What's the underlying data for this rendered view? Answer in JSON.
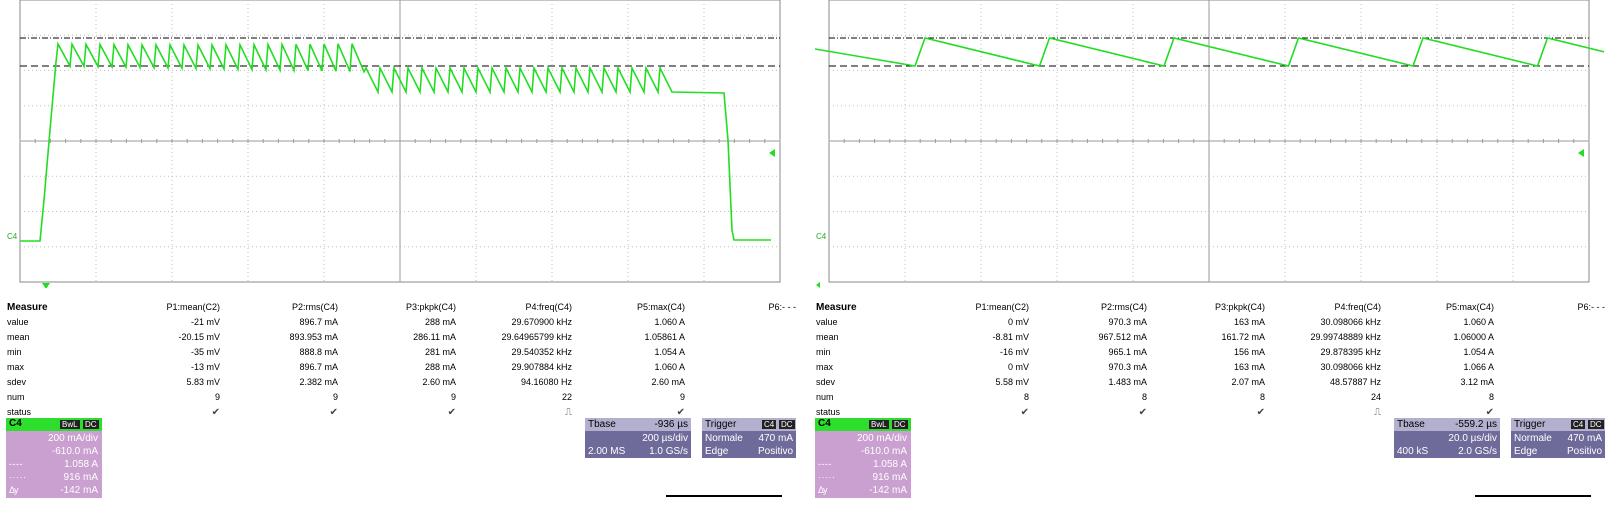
{
  "scopes": [
    {
      "id": "left",
      "channel_label": "C4",
      "measure": {
        "title": "Measure",
        "headers": [
          "P1:mean(C2)",
          "P2:rms(C4)",
          "P3:pkpk(C4)",
          "P4:freq(C4)",
          "P5:max(C4)",
          "P6:- - -"
        ],
        "rows": [
          {
            "label": "value",
            "cells": [
              "-21 mV",
              "896.7 mA",
              "288 mA",
              "29.670900 kHz",
              "1.060 A",
              ""
            ]
          },
          {
            "label": "mean",
            "cells": [
              "-20.15 mV",
              "893.953 mA",
              "286.11 mA",
              "29.64965799 kHz",
              "1.05861 A",
              ""
            ]
          },
          {
            "label": "min",
            "cells": [
              "-35 mV",
              "888.8 mA",
              "281 mA",
              "29.540352 kHz",
              "1.054 A",
              ""
            ]
          },
          {
            "label": "max",
            "cells": [
              "-13 mV",
              "896.7 mA",
              "288 mA",
              "29.907884 kHz",
              "1.060 A",
              ""
            ]
          },
          {
            "label": "sdev",
            "cells": [
              "5.83 mV",
              "2.382 mA",
              "2.60 mA",
              "94.16080 Hz",
              "2.60 mA",
              ""
            ]
          },
          {
            "label": "num",
            "cells": [
              "9",
              "9",
              "9",
              "22",
              "9",
              ""
            ]
          },
          {
            "label": "status",
            "cells": [
              "✔",
              "✔",
              "✔",
              "⎍",
              "✔",
              ""
            ]
          }
        ]
      },
      "channel_box": {
        "name": "C4",
        "tag1": "BwL",
        "tag2": "DC",
        "lines": [
          {
            "k": "",
            "v": "200 mA/div"
          },
          {
            "k": "",
            "v": "-610.0 mA"
          },
          {
            "k": "- - - -",
            "v": "1.058 A"
          },
          {
            "k": "· · · · ·",
            "v": "916 mA"
          },
          {
            "k": "Δy",
            "v": "-142 mA"
          }
        ]
      },
      "timebase": {
        "title": "Tbase",
        "offset": "-936 µs",
        "div": "200 µs/div",
        "samples": "2.00 MS",
        "rate": "1.0 GS/s"
      },
      "trigger": {
        "title": "Trigger",
        "tag1": "C4",
        "tag2": "DC",
        "mode": "Normale",
        "level": "470 mA",
        "type": "Edge",
        "slope": "Positivo"
      }
    },
    {
      "id": "right",
      "channel_label": "C4",
      "measure": {
        "title": "Measure",
        "headers": [
          "P1:mean(C2)",
          "P2:rms(C4)",
          "P3:pkpk(C4)",
          "P4:freq(C4)",
          "P5:max(C4)",
          "P6:- - -"
        ],
        "rows": [
          {
            "label": "value",
            "cells": [
              "0 mV",
              "970.3 mA",
              "163 mA",
              "30.098066 kHz",
              "1.060 A",
              ""
            ]
          },
          {
            "label": "mean",
            "cells": [
              "-8.81 mV",
              "967.512 mA",
              "161.72 mA",
              "29.99748889 kHz",
              "1.06000 A",
              ""
            ]
          },
          {
            "label": "min",
            "cells": [
              "-16 mV",
              "965.1 mA",
              "156 mA",
              "29.878395 kHz",
              "1.054 A",
              ""
            ]
          },
          {
            "label": "max",
            "cells": [
              "0 mV",
              "970.3 mA",
              "163 mA",
              "30.098066 kHz",
              "1.066 A",
              ""
            ]
          },
          {
            "label": "sdev",
            "cells": [
              "5.58 mV",
              "1.483 mA",
              "2.07 mA",
              "48.57887 Hz",
              "3.12 mA",
              ""
            ]
          },
          {
            "label": "num",
            "cells": [
              "8",
              "8",
              "8",
              "24",
              "8",
              ""
            ]
          },
          {
            "label": "status",
            "cells": [
              "✔",
              "✔",
              "✔",
              "⎍",
              "✔",
              ""
            ]
          }
        ]
      },
      "channel_box": {
        "name": "C4",
        "tag1": "BwL",
        "tag2": "DC",
        "lines": [
          {
            "k": "",
            "v": "200 mA/div"
          },
          {
            "k": "",
            "v": "-610.0 mA"
          },
          {
            "k": "- - - -",
            "v": "1.058 A"
          },
          {
            "k": "· · · · ·",
            "v": "916 mA"
          },
          {
            "k": "Δy",
            "v": "-142 mA"
          }
        ]
      },
      "timebase": {
        "title": "Tbase",
        "offset": "-559.2 µs",
        "div": "20.0 µs/div",
        "samples": "400 kS",
        "rate": "2.0 GS/s"
      },
      "trigger": {
        "title": "Trigger",
        "tag1": "C4",
        "tag2": "DC",
        "mode": "Normale",
        "level": "470 mA",
        "type": "Edge",
        "slope": "Positivo"
      }
    }
  ],
  "colors": {
    "trace": "#22dd22",
    "grid": "#9a9a9a",
    "channel_box": "#c9a0cf",
    "timebase_box": "#6e6a9a",
    "header_box": "#b3b0cf"
  }
}
